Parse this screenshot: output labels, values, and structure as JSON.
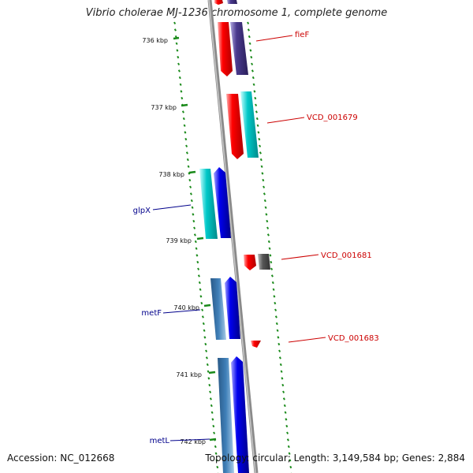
{
  "title": "Vibrio cholerae MJ-1236 chromosome 1, complete genome",
  "footer": {
    "accession": "Accession: NC_012668",
    "stats": "Topology: circular; Length: 3,149,584 bp; Genes: 2,884"
  },
  "ticks": [
    "736 kbp",
    "737 kbp",
    "738 kbp",
    "739 kbp",
    "740 kbp",
    "741 kbp",
    "742 kbp"
  ],
  "labels": {
    "right": [
      "fieF",
      "VCD_001679",
      "VCD_001681",
      "VCD_001683"
    ],
    "left": [
      "glpX",
      "metF",
      "metL"
    ]
  },
  "colors": {
    "backbone": "#8a8a8a",
    "tick": "#1a8a1a",
    "label_right": "#cc0000",
    "label_left": "#00008b",
    "red": "#ff0000",
    "purple": "#4a3a8e",
    "cyan": "#00c8c8",
    "blue": "#0000ee",
    "steel": "#3f7fb8",
    "gray": "#555555"
  }
}
